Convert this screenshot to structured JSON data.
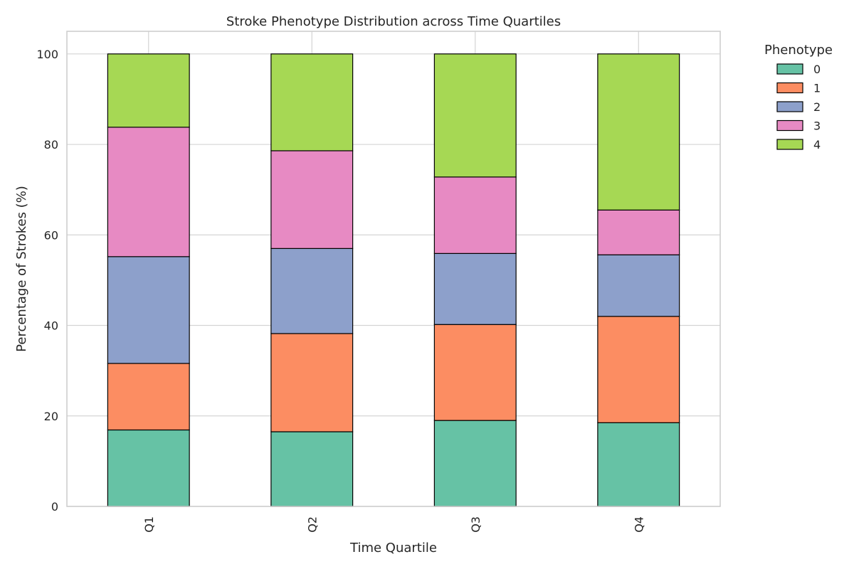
{
  "chart_data": {
    "type": "bar",
    "stacked": true,
    "title": "Stroke Phenotype Distribution across Time Quartiles",
    "xlabel": "Time Quartile",
    "ylabel": "Percentage of Strokes (%)",
    "ylim": [
      0,
      105
    ],
    "yticks": [
      0,
      20,
      40,
      60,
      80,
      100
    ],
    "grid": true,
    "legend": {
      "title": "Phenotype",
      "placement": "outside-top-right"
    },
    "categories": [
      "Q1",
      "Q2",
      "Q3",
      "Q4"
    ],
    "series": [
      {
        "name": "0",
        "color": "#66c2a5",
        "values": [
          16.9,
          16.5,
          19.0,
          18.5
        ]
      },
      {
        "name": "1",
        "color": "#fc8d62",
        "values": [
          14.7,
          21.7,
          21.2,
          23.5
        ]
      },
      {
        "name": "2",
        "color": "#8da0cb",
        "values": [
          23.6,
          18.8,
          15.7,
          13.6
        ]
      },
      {
        "name": "3",
        "color": "#e78ac3",
        "values": [
          28.6,
          21.6,
          16.9,
          9.9
        ]
      },
      {
        "name": "4",
        "color": "#a6d854",
        "values": [
          16.2,
          21.4,
          27.2,
          34.5
        ]
      }
    ]
  }
}
